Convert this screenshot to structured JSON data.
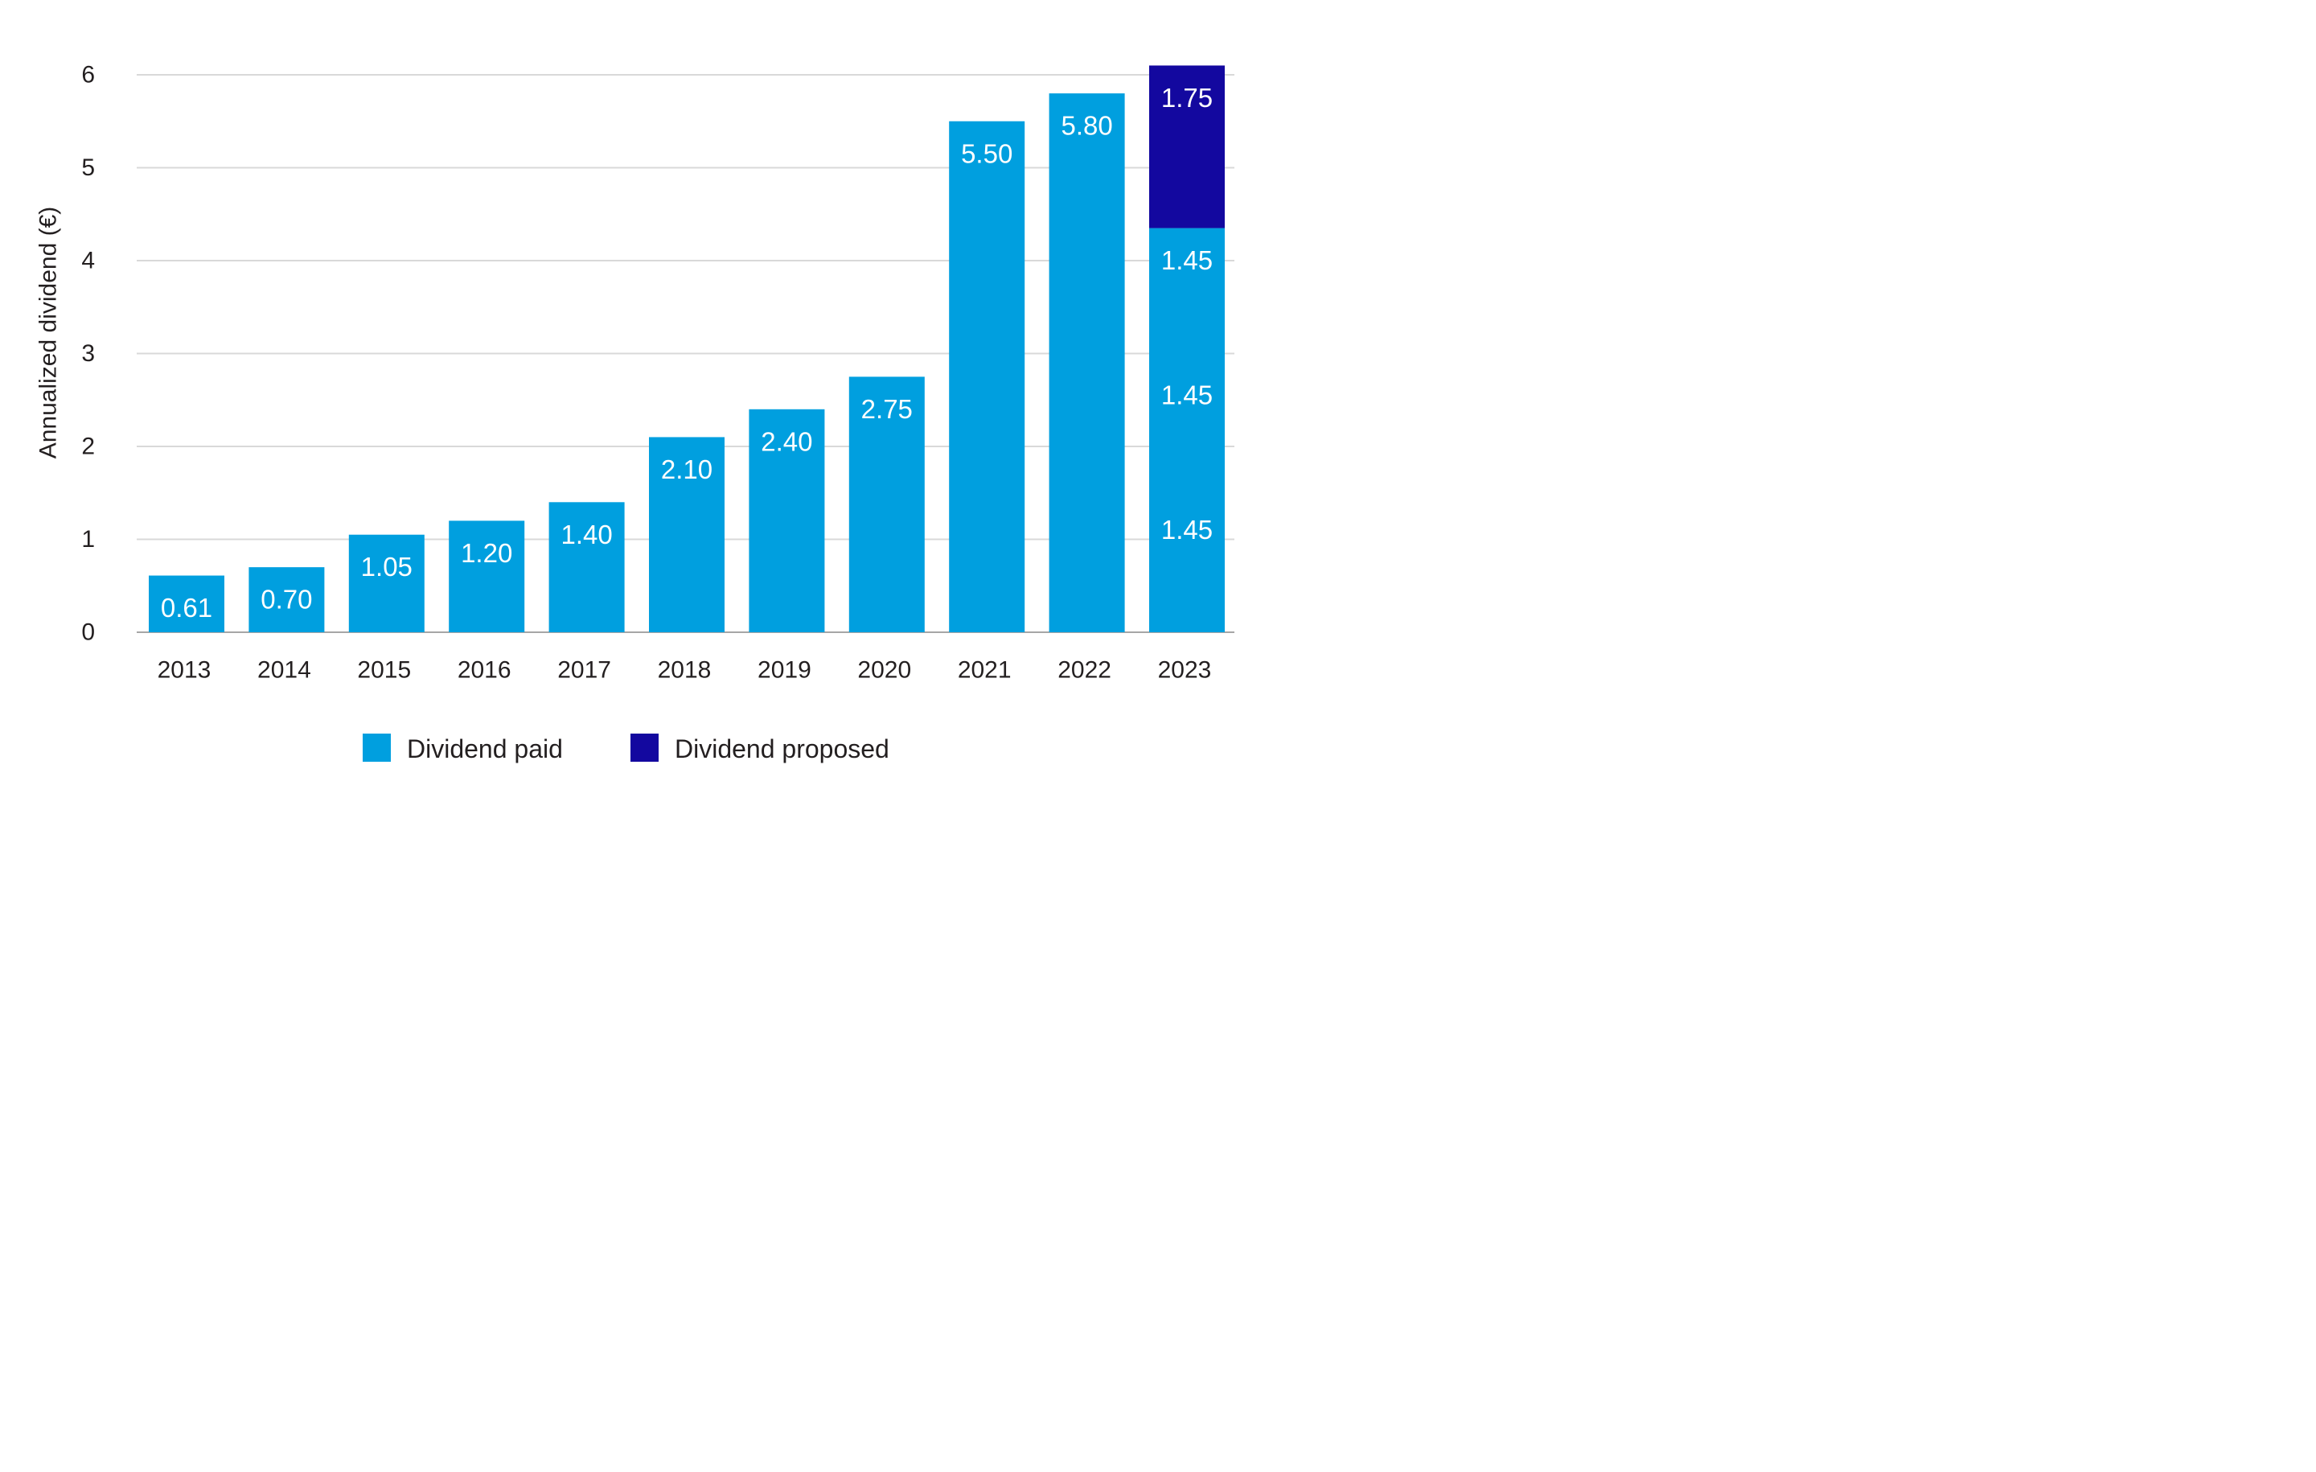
{
  "chart_data": {
    "type": "bar",
    "stacked": true,
    "title": "",
    "xlabel": "",
    "ylabel": "Annualized dividend (€)",
    "ylim": [
      0,
      6
    ],
    "yticks": [
      0,
      1,
      2,
      3,
      4,
      5,
      6
    ],
    "grid": true,
    "legend_position": "bottom",
    "categories": [
      "2013",
      "2014",
      "2015",
      "2016",
      "2017",
      "2018",
      "2019",
      "2020",
      "2021",
      "2022",
      "2023"
    ],
    "series": [
      {
        "name": "Dividend paid",
        "color": "#009fdf",
        "values": [
          0.61,
          0.7,
          1.05,
          1.2,
          1.4,
          2.1,
          2.4,
          2.75,
          5.5,
          5.8,
          4.35
        ],
        "labels": [
          [
            "0.61"
          ],
          [
            "0.70"
          ],
          [
            "1.05"
          ],
          [
            "1.20"
          ],
          [
            "1.40"
          ],
          [
            "2.10"
          ],
          [
            "2.40"
          ],
          [
            "2.75"
          ],
          [
            "5.50"
          ],
          [
            "5.80"
          ],
          [
            "1.45",
            "1.45",
            "1.45"
          ]
        ]
      },
      {
        "name": "Dividend proposed",
        "color": "#13089f",
        "values": [
          0,
          0,
          0,
          0,
          0,
          0,
          0,
          0,
          0,
          0,
          1.75
        ],
        "labels": [
          [],
          [],
          [],
          [],
          [],
          [],
          [],
          [],
          [],
          [],
          [
            "1.75"
          ]
        ]
      }
    ]
  }
}
